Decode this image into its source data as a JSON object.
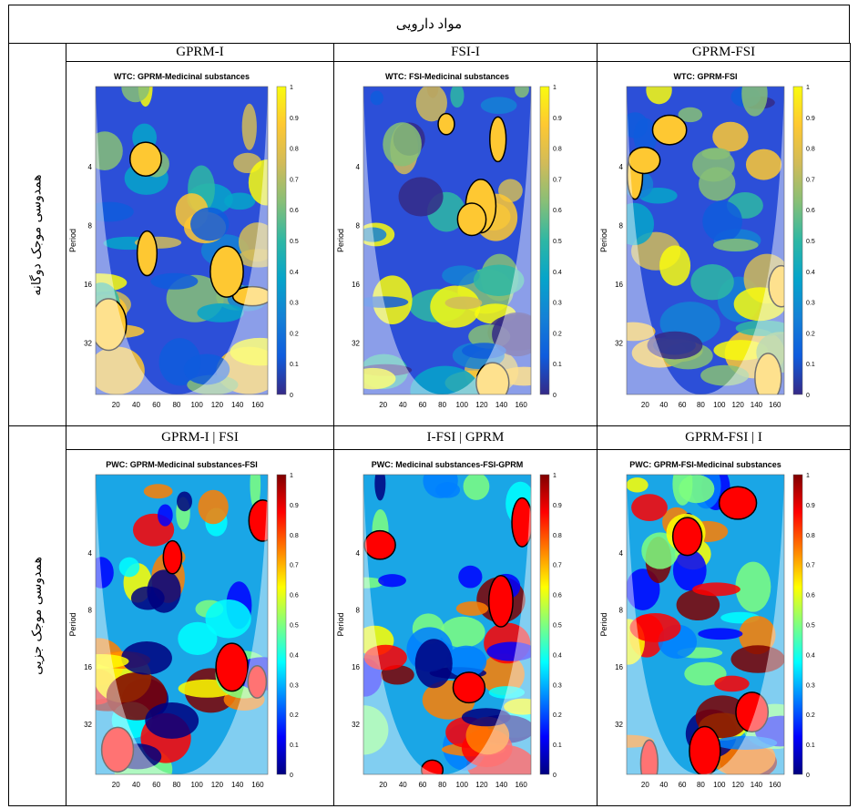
{
  "table": {
    "title": "مواد دارویی",
    "rows": [
      {
        "label": "همدوسی موجک دوگانه",
        "panels": [
          {
            "caption": "GPRM-I",
            "plot_title": "WTC: GPRM-Medicinal substances"
          },
          {
            "caption": "FSI-I",
            "plot_title": "WTC: FSI-Medicinal substances"
          },
          {
            "caption": "GPRM-FSI",
            "plot_title": "WTC: GPRM-FSI"
          }
        ]
      },
      {
        "label": "همدوسی موجک جزیی",
        "panels": [
          {
            "caption": "GPRM-I | FSI",
            "plot_title": "PWC: GPRM-Medicinal substances-FSI"
          },
          {
            "caption": "I-FSI | GPRM",
            "plot_title": "PWC: Medicinal substances-FSI-GPRM"
          },
          {
            "caption": "GPRM-FSI | I",
            "plot_title": "PWC: GPRM-FSI-Medicinal substances"
          }
        ]
      }
    ]
  },
  "axes": {
    "y_label": "Period",
    "yticks": [
      4,
      8,
      16,
      32
    ],
    "xticks": [
      20,
      40,
      60,
      80,
      100,
      120,
      140,
      160
    ],
    "colorbar_ticks": [
      0,
      0.1,
      0.2,
      0.3,
      0.4,
      0.5,
      0.6,
      0.7,
      0.8,
      0.9,
      1
    ]
  }
}
